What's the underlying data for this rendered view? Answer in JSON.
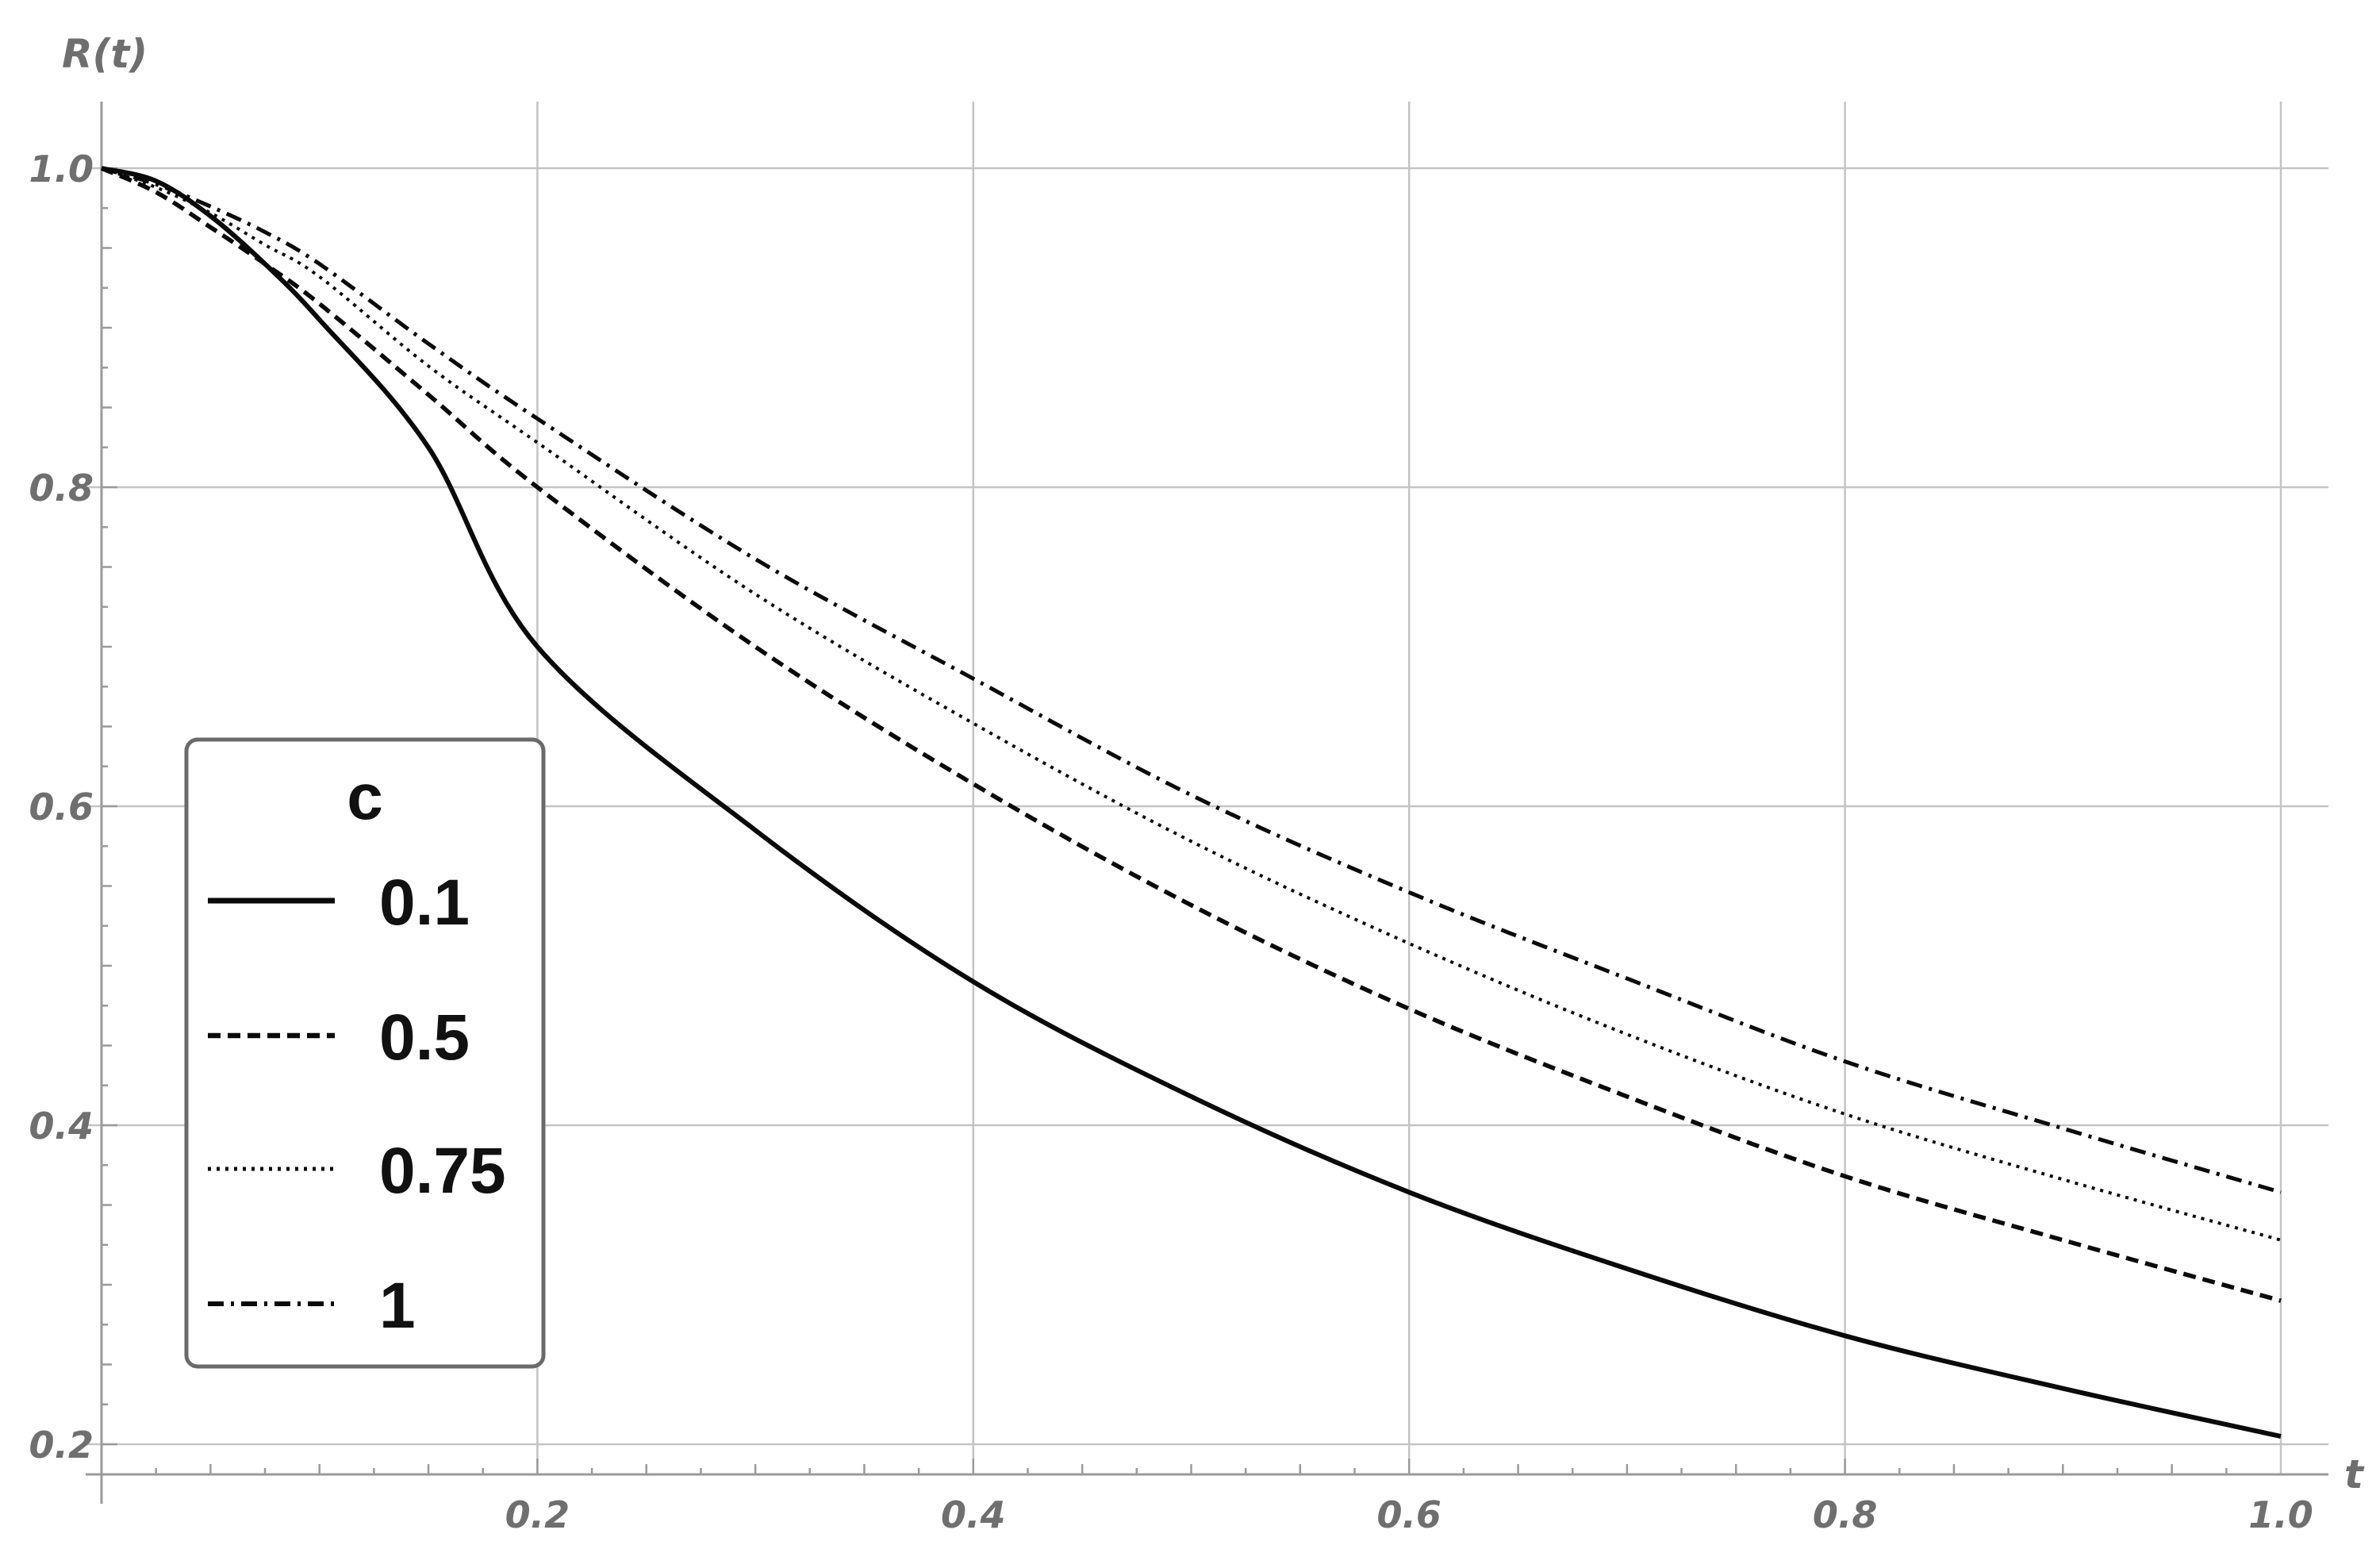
{
  "chart_data": {
    "type": "line",
    "xlabel": "t",
    "ylabel": "R(t)",
    "xlim": [
      0,
      1.0
    ],
    "ylim": [
      0.2,
      1.0
    ],
    "xticks": [
      0.2,
      0.4,
      0.6,
      0.8,
      1.0
    ],
    "xtick_labels": [
      "0.2",
      "0.4",
      "0.6",
      "0.8",
      "1.0"
    ],
    "yticks": [
      0.2,
      0.4,
      0.6,
      0.8,
      1.0
    ],
    "ytick_labels": [
      "0.2",
      "0.4",
      "0.6",
      "0.8",
      "1.0"
    ],
    "grid": true,
    "legend": {
      "title": "c",
      "position": "left",
      "entries": [
        "0.1",
        "0.5",
        "0.75",
        "1"
      ]
    },
    "x": [
      0,
      0.025,
      0.05,
      0.075,
      0.1,
      0.15,
      0.2,
      0.3,
      0.4,
      0.5,
      0.6,
      0.7,
      0.8,
      0.9,
      1.0
    ],
    "series": [
      {
        "name": "0.1",
        "style": "solid",
        "values": [
          1.0,
          0.992,
          0.97,
          0.94,
          0.905,
          0.825,
          0.7,
          0.585,
          0.49,
          0.418,
          0.358,
          0.31,
          0.268,
          0.235,
          0.205
        ]
      },
      {
        "name": "0.5",
        "style": "dashed",
        "values": [
          1.0,
          0.985,
          0.963,
          0.94,
          0.915,
          0.858,
          0.8,
          0.7,
          0.614,
          0.538,
          0.473,
          0.418,
          0.368,
          0.328,
          0.29
        ]
      },
      {
        "name": "0.75",
        "style": "dotted",
        "values": [
          1.0,
          0.988,
          0.972,
          0.952,
          0.932,
          0.876,
          0.828,
          0.733,
          0.652,
          0.578,
          0.514,
          0.457,
          0.407,
          0.366,
          0.328
        ]
      },
      {
        "name": "1",
        "style": "dashdot",
        "values": [
          1.0,
          0.99,
          0.976,
          0.96,
          0.94,
          0.89,
          0.843,
          0.755,
          0.68,
          0.607,
          0.546,
          0.492,
          0.44,
          0.398,
          0.358
        ]
      }
    ]
  }
}
